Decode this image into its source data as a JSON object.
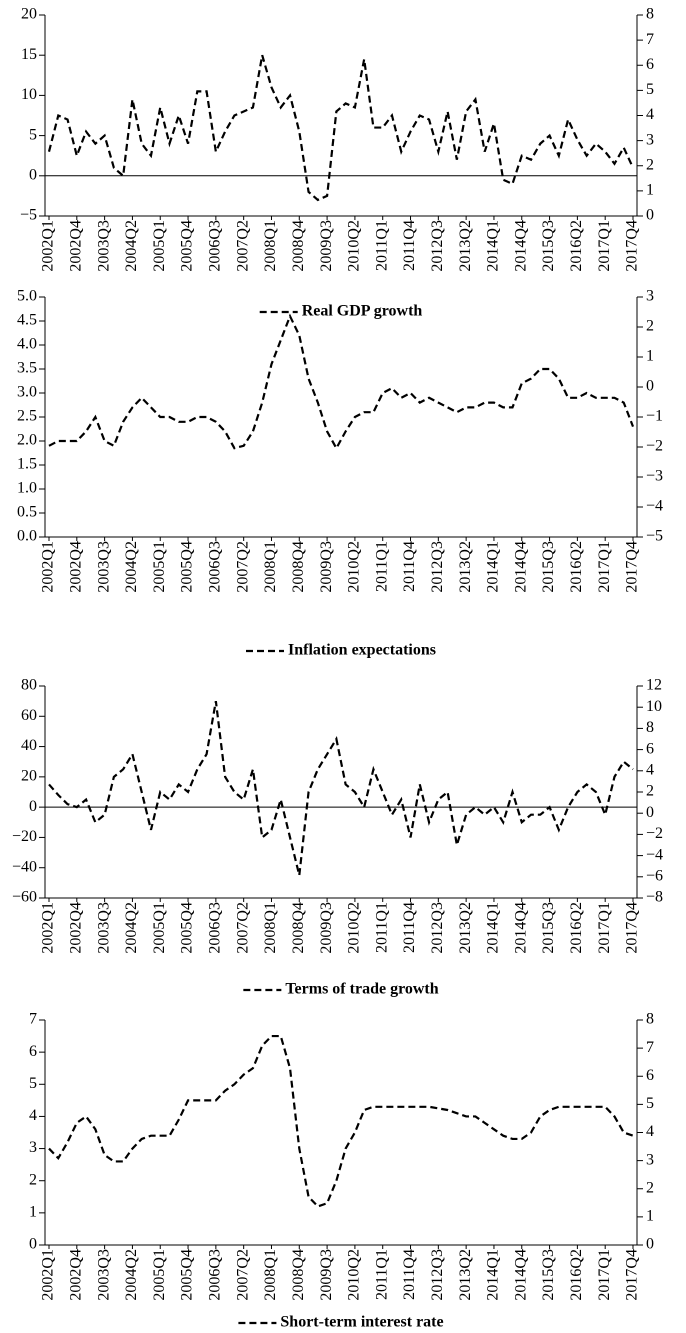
{
  "chart_data": [
    {
      "type": "line",
      "categories": [
        "2002Q1",
        null,
        null,
        "2002Q4",
        null,
        null,
        "2003Q3",
        null,
        null,
        "2004Q2",
        null,
        null,
        "2005Q1",
        null,
        null,
        "2005Q4",
        null,
        null,
        "2006Q3",
        null,
        null,
        "2007Q2",
        null,
        null,
        "2008Q1",
        null,
        null,
        "2008Q4",
        null,
        null,
        "2009Q3",
        null,
        null,
        "2010Q2",
        null,
        null,
        "2011Q1",
        null,
        null,
        "2011Q4",
        null,
        null,
        "2012Q3",
        null,
        null,
        "2013Q2",
        null,
        null,
        "2014Q1",
        null,
        null,
        "2014Q4",
        null,
        null,
        "2015Q3",
        null,
        null,
        "2016Q2",
        null,
        null,
        "2017Q1",
        null,
        null,
        "2017Q4"
      ],
      "series": [
        {
          "name": "Real GDP growth",
          "color": "#000000",
          "values": [
            3,
            7.5,
            7,
            2.5,
            5.5,
            4,
            5,
            1,
            0,
            9.5,
            4,
            2.5,
            8.5,
            4,
            7.5,
            4,
            10.5,
            10.5,
            3,
            5.5,
            7.5,
            8,
            8.5,
            15,
            11,
            8.5,
            10,
            5.5,
            -2,
            -3,
            -2.5,
            8,
            9,
            8.5,
            14.5,
            6,
            6,
            7.5,
            3,
            5.5,
            7.5,
            7,
            3,
            8,
            2,
            8,
            9.5,
            3,
            6.5,
            -0.5,
            -1,
            2.5,
            2,
            4,
            5,
            2.5,
            7,
            4.5,
            2.5,
            4,
            3,
            1.5,
            3.5,
            1
          ]
        }
      ],
      "ylim": [
        -5,
        20
      ],
      "yticks": [
        {
          "value": -5,
          "label": "−5"
        },
        0,
        5,
        10,
        15,
        20
      ],
      "y2lim": [
        0,
        8
      ],
      "y2ticks": [
        0,
        1,
        2,
        3,
        4,
        5,
        6,
        7,
        8
      ],
      "zero_line": true,
      "legend": "bottom"
    },
    {
      "type": "line",
      "categories": [
        "2002Q1",
        null,
        null,
        "2002Q4",
        null,
        null,
        "2003Q3",
        null,
        null,
        "2004Q2",
        null,
        null,
        "2005Q1",
        null,
        null,
        "2005Q4",
        null,
        null,
        "2006Q3",
        null,
        null,
        "2007Q2",
        null,
        null,
        "2008Q1",
        null,
        null,
        "2008Q4",
        null,
        null,
        "2009Q3",
        null,
        null,
        "2010Q2",
        null,
        null,
        "2011Q1",
        null,
        null,
        "2011Q4",
        null,
        null,
        "2012Q3",
        null,
        null,
        "2013Q2",
        null,
        null,
        "2014Q1",
        null,
        null,
        "2014Q4",
        null,
        null,
        "2015Q3",
        null,
        null,
        "2016Q2",
        null,
        null,
        "2017Q1",
        null,
        null,
        "2017Q4"
      ],
      "series": [
        {
          "name": "Inflation expectations",
          "color": "#000000",
          "values": [
            1.9,
            2.0,
            2.0,
            2.0,
            2.2,
            2.5,
            2.0,
            1.9,
            2.4,
            2.7,
            2.9,
            2.7,
            2.5,
            2.5,
            2.4,
            2.4,
            2.5,
            2.5,
            2.4,
            2.2,
            1.85,
            1.9,
            2.2,
            2.8,
            3.6,
            4.1,
            4.6,
            4.2,
            3.3,
            2.8,
            2.2,
            1.85,
            2.2,
            2.5,
            2.6,
            2.6,
            3.0,
            3.1,
            2.9,
            3.0,
            2.8,
            2.9,
            2.8,
            2.7,
            2.6,
            2.7,
            2.7,
            2.8,
            2.8,
            2.7,
            2.7,
            3.2,
            3.3,
            3.5,
            3.5,
            3.3,
            2.9,
            2.9,
            3.0,
            2.9,
            2.9,
            2.9,
            2.8,
            2.3
          ]
        }
      ],
      "ylim": [
        0,
        5
      ],
      "yticks": [
        {
          "value": 0,
          "label": "0.0"
        },
        0.5,
        {
          "value": 1,
          "label": "1.0"
        },
        1.5,
        {
          "value": 2,
          "label": "2.0"
        },
        2.5,
        {
          "value": 3,
          "label": "3.0"
        },
        3.5,
        {
          "value": 4,
          "label": "4.0"
        },
        4.5,
        {
          "value": 5,
          "label": "5.0"
        }
      ],
      "y2lim": [
        -5,
        3
      ],
      "y2ticks": [
        {
          "value": -5,
          "label": "−5"
        },
        {
          "value": -4,
          "label": "−4"
        },
        {
          "value": -3,
          "label": "−3"
        },
        {
          "value": -2,
          "label": "−2"
        },
        {
          "value": -1,
          "label": "−1"
        },
        0,
        1,
        2,
        3
      ],
      "zero_line": false,
      "legend": "bottom"
    },
    {
      "type": "line",
      "categories": [
        "2002Q1",
        null,
        null,
        "2002Q4",
        null,
        null,
        "2003Q3",
        null,
        null,
        "2004Q2",
        null,
        null,
        "2005Q1",
        null,
        null,
        "2005Q4",
        null,
        null,
        "2006Q3",
        null,
        null,
        "2007Q2",
        null,
        null,
        "2008Q1",
        null,
        null,
        "2008Q4",
        null,
        null,
        "2009Q3",
        null,
        null,
        "2010Q2",
        null,
        null,
        "2011Q1",
        null,
        null,
        "2011Q4",
        null,
        null,
        "2012Q3",
        null,
        null,
        "2013Q2",
        null,
        null,
        "2014Q1",
        null,
        null,
        "2014Q4",
        null,
        null,
        "2015Q3",
        null,
        null,
        "2016Q2",
        null,
        null,
        "2017Q1",
        null,
        null,
        "2017Q4"
      ],
      "series": [
        {
          "name": "Terms of trade growth",
          "color": "#000000",
          "values": [
            15,
            8,
            2,
            0,
            5,
            -10,
            -5,
            20,
            25,
            35,
            10,
            -15,
            10,
            5,
            15,
            10,
            25,
            35,
            70,
            20,
            10,
            5,
            25,
            -20,
            -15,
            5,
            -20,
            -45,
            10,
            25,
            35,
            45,
            15,
            10,
            0,
            25,
            10,
            -5,
            5,
            -20,
            15,
            -10,
            5,
            10,
            -25,
            -5,
            0,
            -5,
            0,
            -10,
            10,
            -10,
            -5,
            -5,
            0,
            -15,
            0,
            10,
            15,
            10,
            -5,
            20,
            30,
            25
          ]
        }
      ],
      "ylim": [
        -60,
        80
      ],
      "yticks": [
        {
          "value": -60,
          "label": "−60"
        },
        {
          "value": -40,
          "label": "−40"
        },
        {
          "value": -20,
          "label": "−20"
        },
        0,
        20,
        40,
        60,
        80
      ],
      "y2lim": [
        -8,
        12
      ],
      "y2ticks": [
        {
          "value": -8,
          "label": "−8"
        },
        {
          "value": -6,
          "label": "−6"
        },
        {
          "value": -4,
          "label": "−4"
        },
        {
          "value": -2,
          "label": "−2"
        },
        0,
        2,
        4,
        6,
        8,
        10,
        12
      ],
      "zero_line": true,
      "legend": "bottom"
    },
    {
      "type": "line",
      "categories": [
        "2002Q1",
        null,
        null,
        "2002Q4",
        null,
        null,
        "2003Q3",
        null,
        null,
        "2004Q2",
        null,
        null,
        "2005Q1",
        null,
        null,
        "2005Q4",
        null,
        null,
        "2006Q3",
        null,
        null,
        "2007Q2",
        null,
        null,
        "2008Q1",
        null,
        null,
        "2008Q4",
        null,
        null,
        "2009Q3",
        null,
        null,
        "2010Q2",
        null,
        null,
        "2011Q1",
        null,
        null,
        "2011Q4",
        null,
        null,
        "2012Q3",
        null,
        null,
        "2013Q2",
        null,
        null,
        "2014Q1",
        null,
        null,
        "2014Q4",
        null,
        null,
        "2015Q3",
        null,
        null,
        "2016Q2",
        null,
        null,
        "2017Q1",
        null,
        null,
        "2017Q4"
      ],
      "series": [
        {
          "name": "Short-term interest rate",
          "color": "#000000",
          "values": [
            3.0,
            2.7,
            3.2,
            3.8,
            4.0,
            3.6,
            2.8,
            2.6,
            2.6,
            3.0,
            3.3,
            3.4,
            3.4,
            3.4,
            3.9,
            4.5,
            4.5,
            4.5,
            4.5,
            4.8,
            5.0,
            5.3,
            5.5,
            6.2,
            6.5,
            6.5,
            5.5,
            3.0,
            1.5,
            1.2,
            1.3,
            2.0,
            3.0,
            3.5,
            4.2,
            4.3,
            4.3,
            4.3,
            4.3,
            4.3,
            4.3,
            4.3,
            4.25,
            4.2,
            4.1,
            4.0,
            4.0,
            3.8,
            3.6,
            3.4,
            3.3,
            3.3,
            3.5,
            4.0,
            4.2,
            4.3,
            4.3,
            4.3,
            4.3,
            4.3,
            4.3,
            4.0,
            3.5,
            3.4
          ]
        }
      ],
      "ylim": [
        0,
        7
      ],
      "yticks": [
        0,
        1,
        2,
        3,
        4,
        5,
        6,
        7
      ],
      "y2lim": [
        0,
        8
      ],
      "y2ticks": [
        0,
        1,
        2,
        3,
        4,
        5,
        6,
        7,
        8
      ],
      "zero_line": false,
      "legend": "bottom"
    }
  ]
}
